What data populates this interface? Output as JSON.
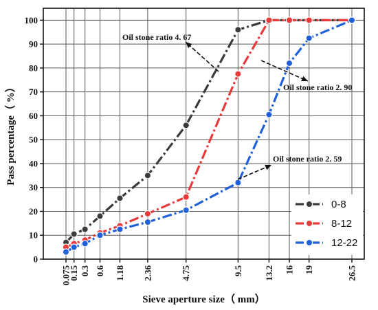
{
  "chart_data": {
    "type": "line",
    "title": "",
    "xlabel": "Sieve aperture size（ mm）",
    "ylabel": "Pass percentage（ %）",
    "x": [
      "0.075",
      "0.15",
      "0.3",
      "0.6",
      "1.18",
      "2.36",
      "4.75",
      "9.5",
      "13.2",
      "16",
      "19",
      "26.5"
    ],
    "ylim": [
      0,
      105
    ],
    "yticks": [
      0,
      10,
      20,
      30,
      40,
      50,
      60,
      70,
      80,
      90,
      100
    ],
    "grid": true,
    "legend_position": "bottom-right",
    "series": [
      {
        "name": "0-8",
        "color": "#3a3a3a",
        "dash": "dashdot",
        "values": [
          7,
          10.5,
          12.5,
          18,
          25.5,
          35,
          56,
          96,
          100,
          100,
          100,
          100
        ]
      },
      {
        "name": "8-12",
        "color": "#e83a3a",
        "dash": "dashdot",
        "values": [
          5,
          6.5,
          8,
          11,
          14,
          19,
          26,
          77.5,
          100,
          100,
          100,
          100
        ]
      },
      {
        "name": "12-22",
        "color": "#2060d8",
        "dash": "dashdot",
        "values": [
          3,
          5,
          6.5,
          10,
          12.5,
          15.5,
          20.5,
          32,
          60.5,
          82,
          92.5,
          100
        ]
      }
    ],
    "annotations": [
      {
        "text": "Oil stone ratio  4. 67",
        "series": "0-8"
      },
      {
        "text": "Oil stone ratio  2. 90",
        "series": "8-12"
      },
      {
        "text": "Oil stone ratio  2. 59",
        "series": "12-22"
      }
    ]
  }
}
